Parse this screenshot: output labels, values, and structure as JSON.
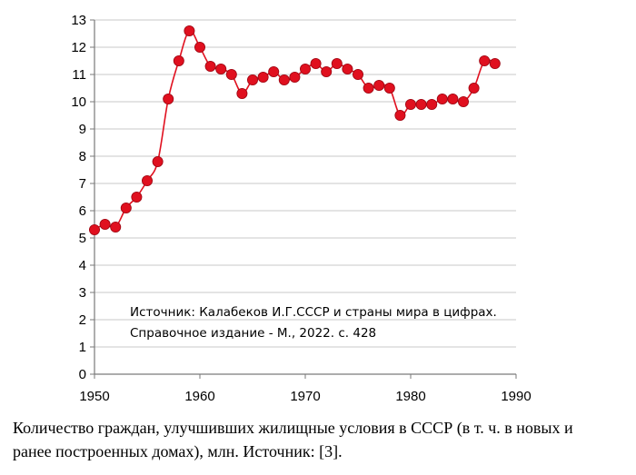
{
  "chart_data": {
    "type": "line",
    "x": [
      1950,
      1951,
      1952,
      1953,
      1954,
      1955,
      1956,
      1957,
      1958,
      1959,
      1960,
      1961,
      1962,
      1963,
      1964,
      1965,
      1966,
      1967,
      1968,
      1969,
      1970,
      1971,
      1972,
      1973,
      1974,
      1975,
      1976,
      1977,
      1978,
      1979,
      1980,
      1981,
      1982,
      1983,
      1984,
      1985,
      1986,
      1987,
      1988
    ],
    "series": [
      {
        "values": [
          5.3,
          5.5,
          5.4,
          6.1,
          6.5,
          7.1,
          7.8,
          10.1,
          11.5,
          12.6,
          12.0,
          11.3,
          11.2,
          11.0,
          10.3,
          10.8,
          10.9,
          11.1,
          10.8,
          10.9,
          11.2,
          11.4,
          11.1,
          11.4,
          11.2,
          11.0,
          10.5,
          10.6,
          10.5,
          9.5,
          9.9,
          9.9,
          9.9,
          10.1,
          10.1,
          10.0,
          10.5,
          11.5,
          11.4
        ],
        "color": "#e0101f"
      }
    ],
    "xlim": [
      1950,
      1990
    ],
    "ylim": [
      0,
      13
    ],
    "xticks": [
      "1950",
      "1960",
      "1970",
      "1980",
      "1990"
    ],
    "yticks": [
      "0",
      "1",
      "2",
      "3",
      "4",
      "5",
      "6",
      "7",
      "8",
      "9",
      "10",
      "11",
      "12",
      "13"
    ],
    "grid": "horizontal",
    "annotation": {
      "line1": "Источник: Калабеков И.Г.СССР и страны мира в цифрах.",
      "line2": "Справочное издание - М., 2022. с. 428"
    }
  },
  "caption": {
    "line1": "Количество граждан, улучшивших жилищные условия в СССР (в т. ч. в новых и",
    "line2": "ранее построенных домах), млн. Источник: [3]."
  }
}
